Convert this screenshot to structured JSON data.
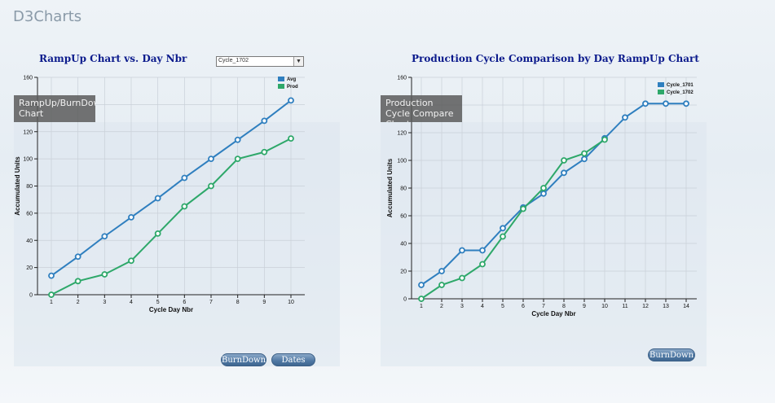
{
  "app": {
    "title": "D3Charts"
  },
  "tiles": [
    {
      "label": "RampUp/BurnDown Chart"
    },
    {
      "label": "Production Cycle Compare Chart"
    }
  ],
  "controls": {
    "cycle_select_value": "Cycle_1702",
    "burndown_label": "BurnDown",
    "dates_label": "Dates",
    "burndown2_label": "BurnDown"
  },
  "colors": {
    "series_blue": "#2f7fbf",
    "series_green": "#2ea86a",
    "title_navy": "#0b1a8c"
  },
  "chart_data": [
    {
      "type": "line",
      "title": "RampUp Chart vs. Day Nbr",
      "xlabel": "Cycle Day Nbr",
      "ylabel": "Accumulated Units",
      "x": [
        1,
        2,
        3,
        4,
        5,
        6,
        7,
        8,
        9,
        10
      ],
      "ylim": [
        0,
        160
      ],
      "yticks": [
        0,
        20,
        40,
        60,
        80,
        100,
        120,
        140,
        160
      ],
      "grid": true,
      "legend": "top-right",
      "series": [
        {
          "name": "Avg",
          "values": [
            14,
            28,
            43,
            57,
            71,
            86,
            100,
            114,
            128,
            143
          ]
        },
        {
          "name": "Prod",
          "values": [
            0,
            10,
            15,
            25,
            45,
            65,
            80,
            100,
            105,
            115
          ]
        }
      ]
    },
    {
      "type": "line",
      "title": "Production Cycle Comparison by Day RampUp Chart",
      "xlabel": "Cycle Day Nbr",
      "ylabel": "Accumulated Units",
      "x": [
        1,
        2,
        3,
        4,
        5,
        6,
        7,
        8,
        9,
        10,
        11,
        12,
        13,
        14
      ],
      "ylim": [
        0,
        160
      ],
      "yticks": [
        0,
        20,
        40,
        60,
        80,
        100,
        120,
        140,
        160
      ],
      "grid": true,
      "legend": "top-right",
      "series": [
        {
          "name": "Cycle_1701",
          "values": [
            10,
            20,
            35,
            35,
            51,
            66,
            76,
            91,
            101,
            116,
            131,
            141,
            141,
            141
          ]
        },
        {
          "name": "Cycle_1702",
          "values": [
            0,
            10,
            15,
            25,
            45,
            65,
            80,
            100,
            105,
            115,
            null,
            null,
            null,
            null
          ]
        }
      ]
    }
  ]
}
